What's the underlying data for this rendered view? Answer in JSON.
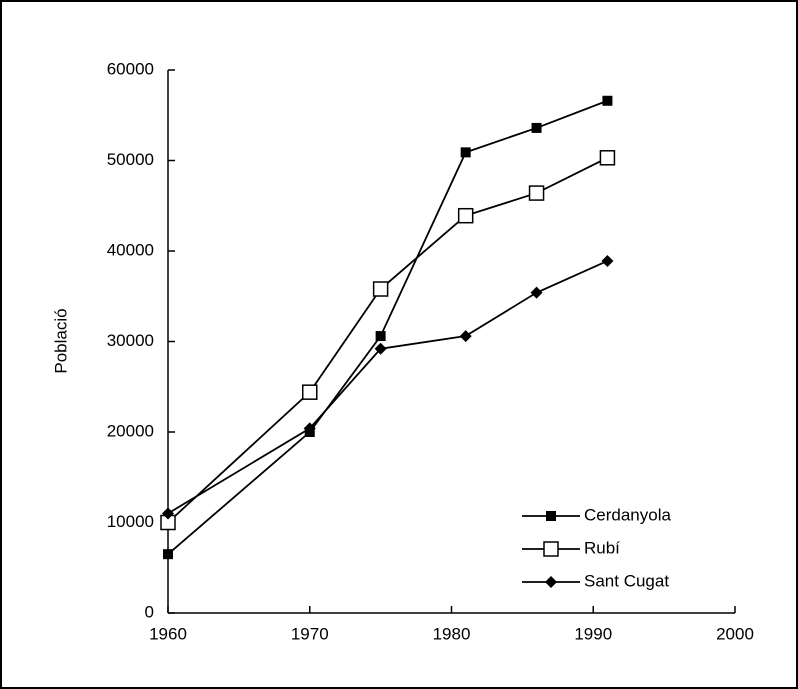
{
  "chart_data": {
    "type": "line",
    "ylabel": "Població",
    "x": [
      1960,
      1970,
      1975,
      1981,
      1986,
      1991
    ],
    "series": [
      {
        "name": "Cerdanyola",
        "color": "#000000",
        "marker": "filled-square",
        "values": [
          6500,
          20000,
          30600,
          50900,
          53600,
          56600
        ]
      },
      {
        "name": "Rubí",
        "color": "#000000",
        "marker": "open-square",
        "values": [
          10000,
          24400,
          35800,
          43900,
          46400,
          50300
        ]
      },
      {
        "name": "Sant Cugat",
        "color": "#000000",
        "marker": "diamond",
        "values": [
          11000,
          20400,
          29200,
          30600,
          35400,
          38900
        ]
      }
    ],
    "xlim": [
      1960,
      2000
    ],
    "xticks": [
      1960,
      1970,
      1980,
      1990,
      2000
    ],
    "ylim": [
      0,
      60000
    ],
    "yticks": [
      0,
      10000,
      20000,
      30000,
      40000,
      50000,
      60000
    ],
    "legend": "lower right"
  }
}
